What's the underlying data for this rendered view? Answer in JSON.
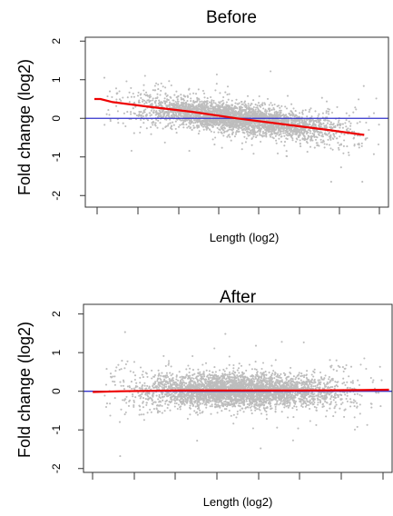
{
  "chart_data": [
    {
      "type": "scatter",
      "title": "Before",
      "xlabel": "Length (log2)",
      "ylabel": "Fold change (log2)",
      "ylim": [
        -2.3,
        2.1
      ],
      "yticks": [
        "-2",
        "-1",
        "0",
        "1",
        "2"
      ],
      "xlim": [
        0,
        100
      ],
      "xtick_labels_shown": false,
      "grid": false,
      "point_color": "#bdbdbd",
      "reference_line": {
        "y": 0,
        "color": "#3333cc"
      },
      "trend": {
        "color": "#ee0000",
        "x": [
          3,
          5,
          9,
          20,
          35,
          50,
          65,
          80,
          92
        ],
        "y": [
          0.5,
          0.5,
          0.42,
          0.31,
          0.17,
          0.0,
          -0.15,
          -0.3,
          -0.43
        ]
      }
    },
    {
      "type": "scatter",
      "title": "After",
      "xlabel": "Length (log2)",
      "ylabel": "Fold change (log2)",
      "ylim": [
        -2.1,
        2.25
      ],
      "yticks": [
        "-2",
        "-1",
        "0",
        "1",
        "2"
      ],
      "xlim": [
        0,
        100
      ],
      "xtick_labels_shown": false,
      "grid": false,
      "point_color": "#bdbdbd",
      "reference_line": {
        "y": 0,
        "color": "#3333cc"
      },
      "trend": {
        "color": "#ee0000",
        "x": [
          3,
          12,
          30,
          50,
          70,
          90,
          99
        ],
        "y": [
          -0.02,
          0.0,
          0.02,
          0.02,
          0.02,
          0.03,
          0.04
        ]
      }
    }
  ]
}
